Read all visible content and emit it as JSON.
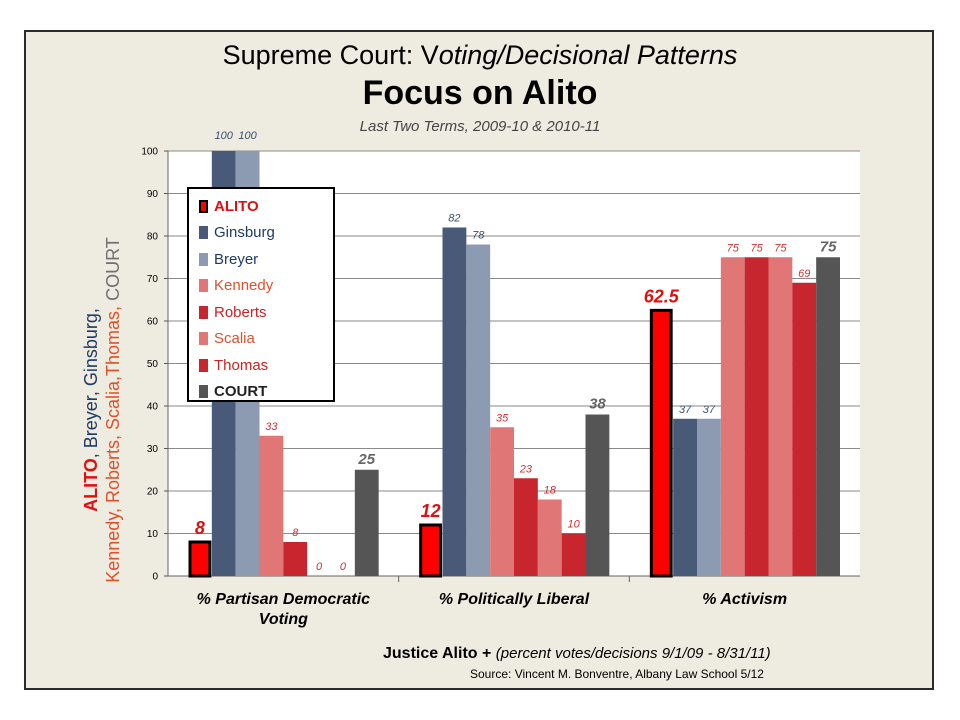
{
  "title_line1_a": "Supreme Court: V",
  "title_line1_b": "oting/Decisional Patterns",
  "title_line2": "Focus on Alito",
  "subtitle": "Last Two Terms, 2009-10 & 2010-11",
  "ylabel": {
    "line1": [
      {
        "text": "ALITO",
        "color": "#e01010",
        "bold": true
      },
      {
        "text": ", ",
        "color": "#1f3a64"
      },
      {
        "text": "Breyer",
        "color": "#1f3a64"
      },
      {
        "text": ", ",
        "color": "#1f3a64"
      },
      {
        "text": "Ginsburg",
        "color": "#1f3a64"
      },
      {
        "text": ",",
        "color": "#1f3a64"
      }
    ],
    "line2": [
      {
        "text": "Kennedy, Roberts, Scalia,Thomas,",
        "color": "#e0502a"
      },
      {
        "text": " COURT",
        "color": "#707070"
      }
    ]
  },
  "footer_bold": "Justice Alito +",
  "footer_italic": "(percent votes/decisions 9/1/09 - 8/31/11)",
  "source": "Source: Vincent M. Bonventre, Albany Law School 5/12",
  "chart_data": {
    "type": "bar",
    "categories": [
      "% Partisan Democratic Voting",
      "% Politically Liberal",
      "% Activism"
    ],
    "category_lines": [
      [
        "% Partisan Democratic",
        "Voting"
      ],
      [
        "% Politically Liberal"
      ],
      [
        "% Activism"
      ]
    ],
    "ylim": [
      0,
      100
    ],
    "yticks": [
      "0",
      "10",
      "20",
      "30",
      "40",
      "50",
      "60",
      "70",
      "80",
      "90",
      "100"
    ],
    "grid": true,
    "legend_position": "top-left",
    "series": [
      {
        "name": "ALITO",
        "color": "#ff0000",
        "label_color": "#e01010",
        "values": [
          8,
          12,
          62.5
        ],
        "labels": [
          "8",
          "12",
          "62.5"
        ]
      },
      {
        "name": "Ginsburg",
        "color": "#485a78",
        "label_color": "#3a5070",
        "values": [
          100,
          82,
          37
        ],
        "labels": [
          "100",
          "82",
          "37"
        ]
      },
      {
        "name": "Breyer",
        "color": "#8c9bb1",
        "label_color": "#3a5070",
        "values": [
          100,
          78,
          37
        ],
        "labels": [
          "100",
          "78",
          "37"
        ]
      },
      {
        "name": "Kennedy",
        "color": "#e07676",
        "label_color": "#d03030",
        "values": [
          33,
          35,
          75
        ],
        "labels": [
          "33",
          "35",
          "75"
        ]
      },
      {
        "name": "Roberts",
        "color": "#c8262e",
        "label_color": "#d03030",
        "values": [
          8,
          23,
          75
        ],
        "labels": [
          "8",
          "23",
          "75"
        ]
      },
      {
        "name": "Scalia",
        "color": "#e07676",
        "label_color": "#d03030",
        "values": [
          0,
          18,
          75
        ],
        "labels": [
          "0",
          "18",
          "75"
        ]
      },
      {
        "name": "Thomas",
        "color": "#c8262e",
        "label_color": "#d03030",
        "values": [
          0,
          10,
          69
        ],
        "labels": [
          "0",
          "10",
          "69"
        ]
      },
      {
        "name": "COURT",
        "color": "#555555",
        "label_color": "#666666",
        "values": [
          25,
          38,
          75
        ],
        "labels": [
          "25",
          "38",
          "75"
        ]
      }
    ],
    "legend_colors": {
      "ALITO": "#e01010",
      "Ginsburg": "#1f3a64",
      "Breyer": "#1f3a64",
      "Kennedy": "#e0502a",
      "Roberts": "#d02020",
      "Scalia": "#e0502a",
      "Thomas": "#d02020",
      "COURT": "#222222"
    }
  }
}
